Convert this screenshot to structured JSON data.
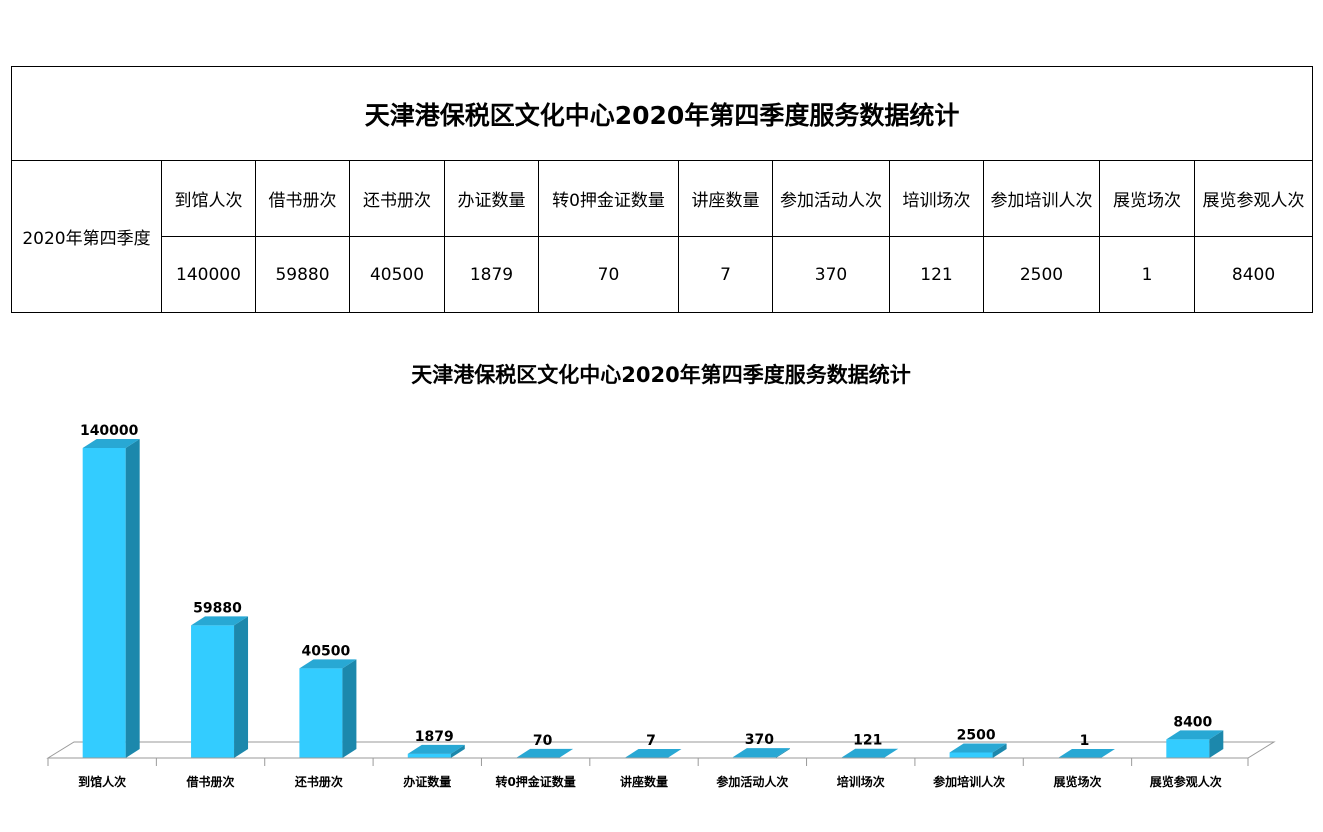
{
  "table": {
    "title": "天津港保税区文化中心2020年第四季度服务数据统计",
    "row_label": "2020年第四季度",
    "headers": [
      "到馆人次",
      "借书册次",
      "还书册次",
      "办证数量",
      "转0押金证数量",
      "讲座数量",
      "参加活动人次",
      "培训场次",
      "参加培训人次",
      "展览场次",
      "展览参观人次"
    ],
    "values": [
      "140000",
      "59880",
      "40500",
      "1879",
      "70",
      "7",
      "370",
      "121",
      "2500",
      "1",
      "8400"
    ]
  },
  "chart_data": {
    "type": "bar",
    "title": "天津港保税区文化中心2020年第四季度服务数据统计",
    "categories": [
      "到馆人次",
      "借书册次",
      "还书册次",
      "办证数量",
      "转0押金证数量",
      "讲座数量",
      "参加活动人次",
      "培训场次",
      "参加培训人次",
      "展览场次",
      "展览参观人次"
    ],
    "values": [
      140000,
      59880,
      40500,
      1879,
      70,
      7,
      370,
      121,
      2500,
      1,
      8400
    ],
    "ylim": [
      0,
      140000
    ],
    "xlabel": "",
    "ylabel": "",
    "grid": false,
    "legend": "none",
    "colors": {
      "front": "#33CCFF",
      "side": "#1C88AC",
      "top": "#28A8D4",
      "floor": "#9A9A9A"
    }
  }
}
